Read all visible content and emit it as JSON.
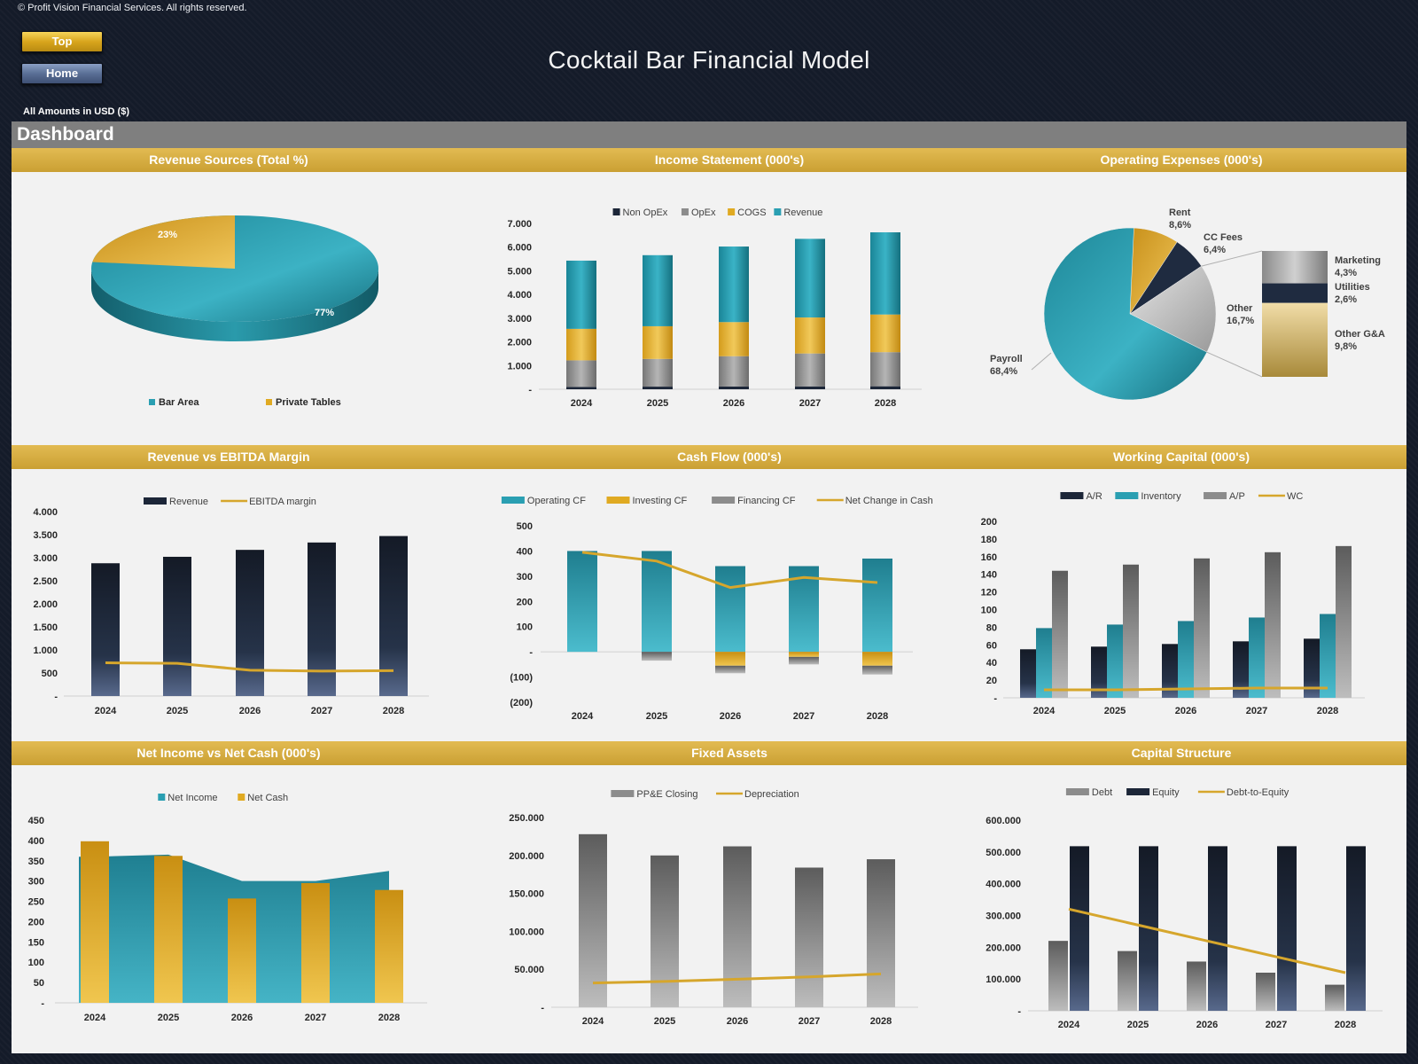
{
  "header": {
    "copyright": "© Profit Vision Financial Services. All rights reserved.",
    "top_button": "Top",
    "home_button": "Home",
    "title": "Cocktail Bar Financial Model",
    "amounts_note": "All Amounts in  USD ($)",
    "dashboard_label": "Dashboard"
  },
  "colors": {
    "teal": "#2a9fb2",
    "gold": "#e0aa22",
    "navy": "#1c2638",
    "gray": "#8c8c8c",
    "line": "#d6a62c"
  },
  "chart_data": [
    {
      "id": "revenue_sources",
      "type": "pie",
      "title": "Revenue Sources (Total %)",
      "categories": [
        "Bar Area",
        "Private Tables"
      ],
      "values": [
        77,
        23
      ],
      "labels": [
        "77%",
        "23%"
      ],
      "legend": "bottom"
    },
    {
      "id": "income_statement",
      "type": "bar",
      "stacked": true,
      "title": "Income Statement (000's)",
      "categories": [
        "2024",
        "2025",
        "2026",
        "2027",
        "2028"
      ],
      "series": [
        {
          "name": "Non OpEx",
          "values": [
            100,
            110,
            115,
            120,
            125
          ]
        },
        {
          "name": "OpEx",
          "values": [
            1120,
            1170,
            1280,
            1390,
            1440
          ]
        },
        {
          "name": "COGS",
          "values": [
            1330,
            1380,
            1440,
            1520,
            1590
          ]
        },
        {
          "name": "Revenue",
          "values": [
            2880,
            3000,
            3190,
            3320,
            3470
          ]
        }
      ],
      "yticks": [
        "7.000",
        "6.000",
        "5.000",
        "4.000",
        "3.000",
        "2.000",
        "1.000",
        "-"
      ],
      "ylim": [
        0,
        7000
      ],
      "legend": "top"
    },
    {
      "id": "operating_expenses",
      "type": "pie",
      "title": "Operating Expenses (000's)",
      "categories": [
        "Payroll",
        "Rent",
        "CC Fees",
        "Other"
      ],
      "values": [
        68.4,
        8.6,
        6.4,
        16.7
      ],
      "labels": [
        "Payroll\n68,4%",
        "Rent\n8,6%",
        "CC Fees\n6,4%",
        "Other\n16,7%"
      ],
      "breakdown": {
        "of": "Other",
        "categories": [
          "Marketing",
          "Utilities",
          "Other G&A"
        ],
        "values": [
          4.3,
          2.6,
          9.8
        ],
        "labels": [
          "Marketing\n4,3%",
          "Utilities\n2,6%",
          "Other G&A\n9,8%"
        ]
      }
    },
    {
      "id": "revenue_vs_ebitda",
      "type": "bar",
      "title": "Revenue vs EBITDA Margin",
      "categories": [
        "2024",
        "2025",
        "2026",
        "2027",
        "2028"
      ],
      "series": [
        {
          "name": "Revenue",
          "type": "bar",
          "values": [
            2880,
            3020,
            3170,
            3330,
            3470
          ]
        },
        {
          "name": "EBITDA margin",
          "type": "line",
          "values": [
            720,
            710,
            560,
            540,
            550
          ]
        }
      ],
      "yticks": [
        "4.000",
        "3.500",
        "3.000",
        "2.500",
        "2.000",
        "1.500",
        "1.000",
        "500",
        "-"
      ],
      "ylim": [
        0,
        4000
      ],
      "legend": "top"
    },
    {
      "id": "cash_flow",
      "type": "bar",
      "stacked": true,
      "title": "Cash Flow (000's)",
      "categories": [
        "2024",
        "2025",
        "2026",
        "2027",
        "2028"
      ],
      "series": [
        {
          "name": "Operating CF",
          "type": "bar",
          "values": [
            400,
            400,
            340,
            340,
            370
          ]
        },
        {
          "name": "Investing CF",
          "type": "bar",
          "values": [
            0,
            0,
            -55,
            -20,
            -55
          ]
        },
        {
          "name": "Financing CF",
          "type": "bar",
          "values": [
            0,
            -35,
            -30,
            -30,
            -35
          ]
        },
        {
          "name": "Net Change in Cash",
          "type": "line",
          "values": [
            395,
            360,
            255,
            295,
            275
          ]
        }
      ],
      "yticks": [
        "500",
        "400",
        "300",
        "200",
        "100",
        "-",
        "(100)",
        "(200)"
      ],
      "ylim": [
        -200,
        500
      ],
      "legend": "top"
    },
    {
      "id": "working_capital",
      "type": "bar",
      "title": "Working Capital (000's)",
      "categories": [
        "2024",
        "2025",
        "2026",
        "2027",
        "2028"
      ],
      "series": [
        {
          "name": "A/R",
          "type": "bar",
          "values": [
            55,
            58,
            61,
            64,
            67
          ]
        },
        {
          "name": "Inventory",
          "type": "bar",
          "values": [
            79,
            83,
            87,
            91,
            95
          ]
        },
        {
          "name": "A/P",
          "type": "bar",
          "values": [
            144,
            151,
            158,
            165,
            172
          ]
        },
        {
          "name": "WC",
          "type": "line",
          "values": [
            9,
            9,
            10,
            11,
            11
          ]
        }
      ],
      "yticks": [
        "200",
        "180",
        "160",
        "140",
        "120",
        "100",
        "80",
        "60",
        "40",
        "20",
        "-"
      ],
      "ylim": [
        0,
        200
      ],
      "legend": "top"
    },
    {
      "id": "net_income_vs_net_cash",
      "type": "area",
      "title": "Net Income vs Net Cash (000's)",
      "categories": [
        "2024",
        "2025",
        "2026",
        "2027",
        "2028"
      ],
      "series": [
        {
          "name": "Net Income",
          "type": "area",
          "values": [
            360,
            365,
            300,
            300,
            325
          ]
        },
        {
          "name": "Net Cash",
          "type": "bar",
          "values": [
            398,
            362,
            257,
            295,
            278
          ]
        }
      ],
      "yticks": [
        "450",
        "400",
        "350",
        "300",
        "250",
        "200",
        "150",
        "100",
        "50",
        "-"
      ],
      "ylim": [
        0,
        450
      ],
      "legend": "top"
    },
    {
      "id": "fixed_assets",
      "type": "bar",
      "title": "Fixed Assets",
      "categories": [
        "2024",
        "2025",
        "2026",
        "2027",
        "2028"
      ],
      "series": [
        {
          "name": "PP&E Closing",
          "type": "bar",
          "values": [
            228000,
            200000,
            212000,
            184000,
            195000
          ]
        },
        {
          "name": "Depreciation",
          "type": "line",
          "values": [
            32000,
            34000,
            37000,
            40000,
            44000
          ]
        }
      ],
      "yticks": [
        "250.000",
        "200.000",
        "150.000",
        "100.000",
        "50.000",
        "-"
      ],
      "ylim": [
        0,
        250000
      ],
      "legend": "top"
    },
    {
      "id": "capital_structure",
      "type": "bar",
      "title": "Capital Structure",
      "categories": [
        "2024",
        "2025",
        "2026",
        "2027",
        "2028"
      ],
      "series": [
        {
          "name": "Debt",
          "type": "bar",
          "values": [
            220000,
            188000,
            155000,
            120000,
            82000
          ]
        },
        {
          "name": "Equity",
          "type": "bar",
          "values": [
            518000,
            518000,
            518000,
            518000,
            518000
          ]
        },
        {
          "name": "Debt-to-Equity",
          "type": "line",
          "values": [
            320000,
            270000,
            220000,
            170000,
            120000
          ]
        }
      ],
      "yticks": [
        "600.000",
        "500.000",
        "400.000",
        "300.000",
        "200.000",
        "100.000",
        "-"
      ],
      "ylim": [
        0,
        600000
      ],
      "legend": "top"
    }
  ]
}
